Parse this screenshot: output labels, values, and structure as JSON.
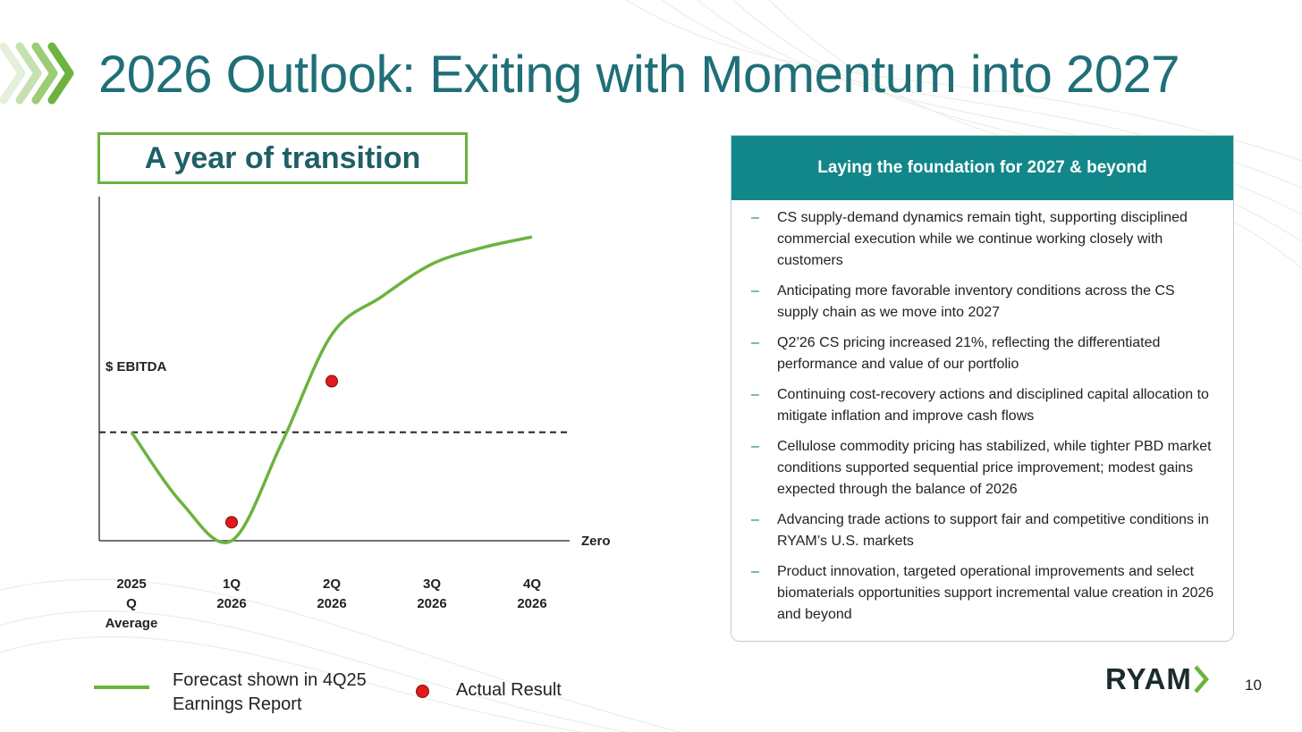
{
  "slide": {
    "title": "2026 Outlook: Exiting with Momentum into 2027",
    "subtitle": "A year of transition",
    "page_number": "10",
    "brand_colors": {
      "title": "#1f6f78",
      "green": "#6cb33f",
      "teal": "#12878a",
      "red": "#e11b1b"
    }
  },
  "chart_data": {
    "type": "line",
    "title": "",
    "ylabel": "$ EBITDA",
    "zero_label": "Zero",
    "categories": [
      "2025\nQ\nAverage",
      "1Q\n2026",
      "2Q\n2026",
      "3Q\n2026",
      "4Q\n2026"
    ],
    "series": [
      {
        "name": "Forecast shown in 4Q25 Earnings Report",
        "style": "smooth-line",
        "color": "#6cb33f",
        "points": [
          {
            "x": 0,
            "y": 1.0
          },
          {
            "x": 0.5,
            "y": 0.35
          },
          {
            "x": 1.0,
            "y": 0.0
          },
          {
            "x": 1.5,
            "y": 0.9
          },
          {
            "x": 2.0,
            "y": 1.9
          },
          {
            "x": 2.5,
            "y": 2.25
          },
          {
            "x": 3.0,
            "y": 2.55
          },
          {
            "x": 3.5,
            "y": 2.7
          },
          {
            "x": 4.0,
            "y": 2.8
          }
        ]
      },
      {
        "name": "Actual Result",
        "style": "markers",
        "color": "#e11b1b",
        "points": [
          {
            "x": 1.0,
            "y": 0.17
          },
          {
            "x": 2.0,
            "y": 1.47
          }
        ]
      }
    ],
    "reference_line": {
      "y": 1.0,
      "style": "dashed"
    },
    "xlim": [
      0,
      4
    ],
    "ylim": [
      0,
      2.8
    ],
    "grid": false,
    "legend": "bottom"
  },
  "panel": {
    "header": "Laying the foundation for 2027 & beyond",
    "bullet_marker": "–",
    "bullets": [
      "CS supply-demand dynamics remain tight, supporting disciplined commercial execution while we continue working closely with customers",
      "Anticipating more favorable inventory conditions across the CS supply chain as we move into 2027",
      "Q2’26 CS pricing increased 21%, reflecting the differentiated performance and value of our portfolio",
      "Continuing cost-recovery actions and disciplined capital allocation to mitigate inflation and improve cash flows",
      "Cellulose commodity pricing has stabilized, while tighter PBD market conditions supported sequential price improvement; modest gains expected through the balance of 2026",
      "Advancing trade actions to support fair and competitive conditions in RYAM’s U.S. markets",
      "Product innovation, targeted operational improvements and select biomaterials opportunities support incremental value creation in 2026 and beyond"
    ]
  },
  "legend": {
    "forecast_label": "Forecast shown in 4Q25 Earnings Report",
    "actual_label": "Actual Result"
  },
  "logo": {
    "text": "RYAM",
    "icon": "ryam-chevron-icon"
  }
}
